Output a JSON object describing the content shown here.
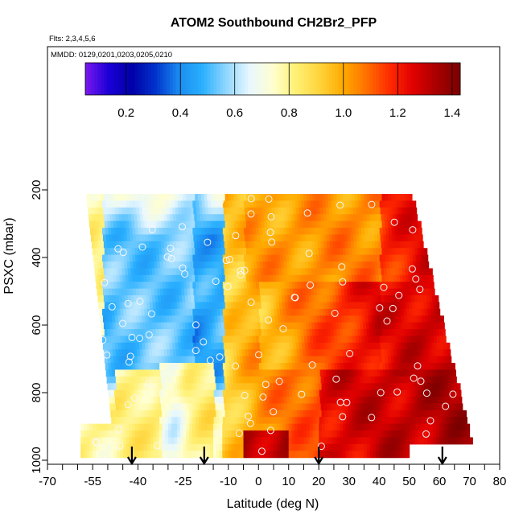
{
  "chart_data": {
    "type": "heatmap",
    "title": "ATOM2 Southbound CH2Br2_PFP",
    "flights_label": "Flts: 2,3,4,5,6",
    "dates_label": "MMDD: 0129,0201,0203,0205,0210",
    "xlabel": "Latitude (deg N)",
    "ylabel": "PSXC (mbar)",
    "xlim": [
      -70,
      80
    ],
    "ylim": [
      1000,
      200
    ],
    "x_ticks": [
      -70,
      -55,
      -40,
      -25,
      -10,
      0,
      10,
      20,
      30,
      40,
      50,
      60,
      70,
      80
    ],
    "x_minor_step": 5,
    "y_ticks": [
      200,
      400,
      600,
      800,
      1000
    ],
    "colorbar": {
      "range": [
        0.05,
        1.43
      ],
      "ticks": [
        "0.2",
        "0.4",
        "0.6",
        "0.8",
        "1.0",
        "1.2",
        "1.4"
      ],
      "tick_values": [
        0.2,
        0.4,
        0.6,
        0.8,
        1.0,
        1.2,
        1.4
      ],
      "colors": [
        "#7a18ee",
        "#1a00d6",
        "#0000a6",
        "#0033cc",
        "#1a8cf0",
        "#2ab0ff",
        "#8fd6ff",
        "#e7f7ff",
        "#ffffd0",
        "#fff073",
        "#ffd43b",
        "#ffab00",
        "#ff7000",
        "#ff2a00",
        "#e00000",
        "#a80000",
        "#7a0000"
      ]
    },
    "arrows_latitude": [
      -42,
      -18,
      20,
      61
    ],
    "grid": false,
    "legend": "none"
  }
}
